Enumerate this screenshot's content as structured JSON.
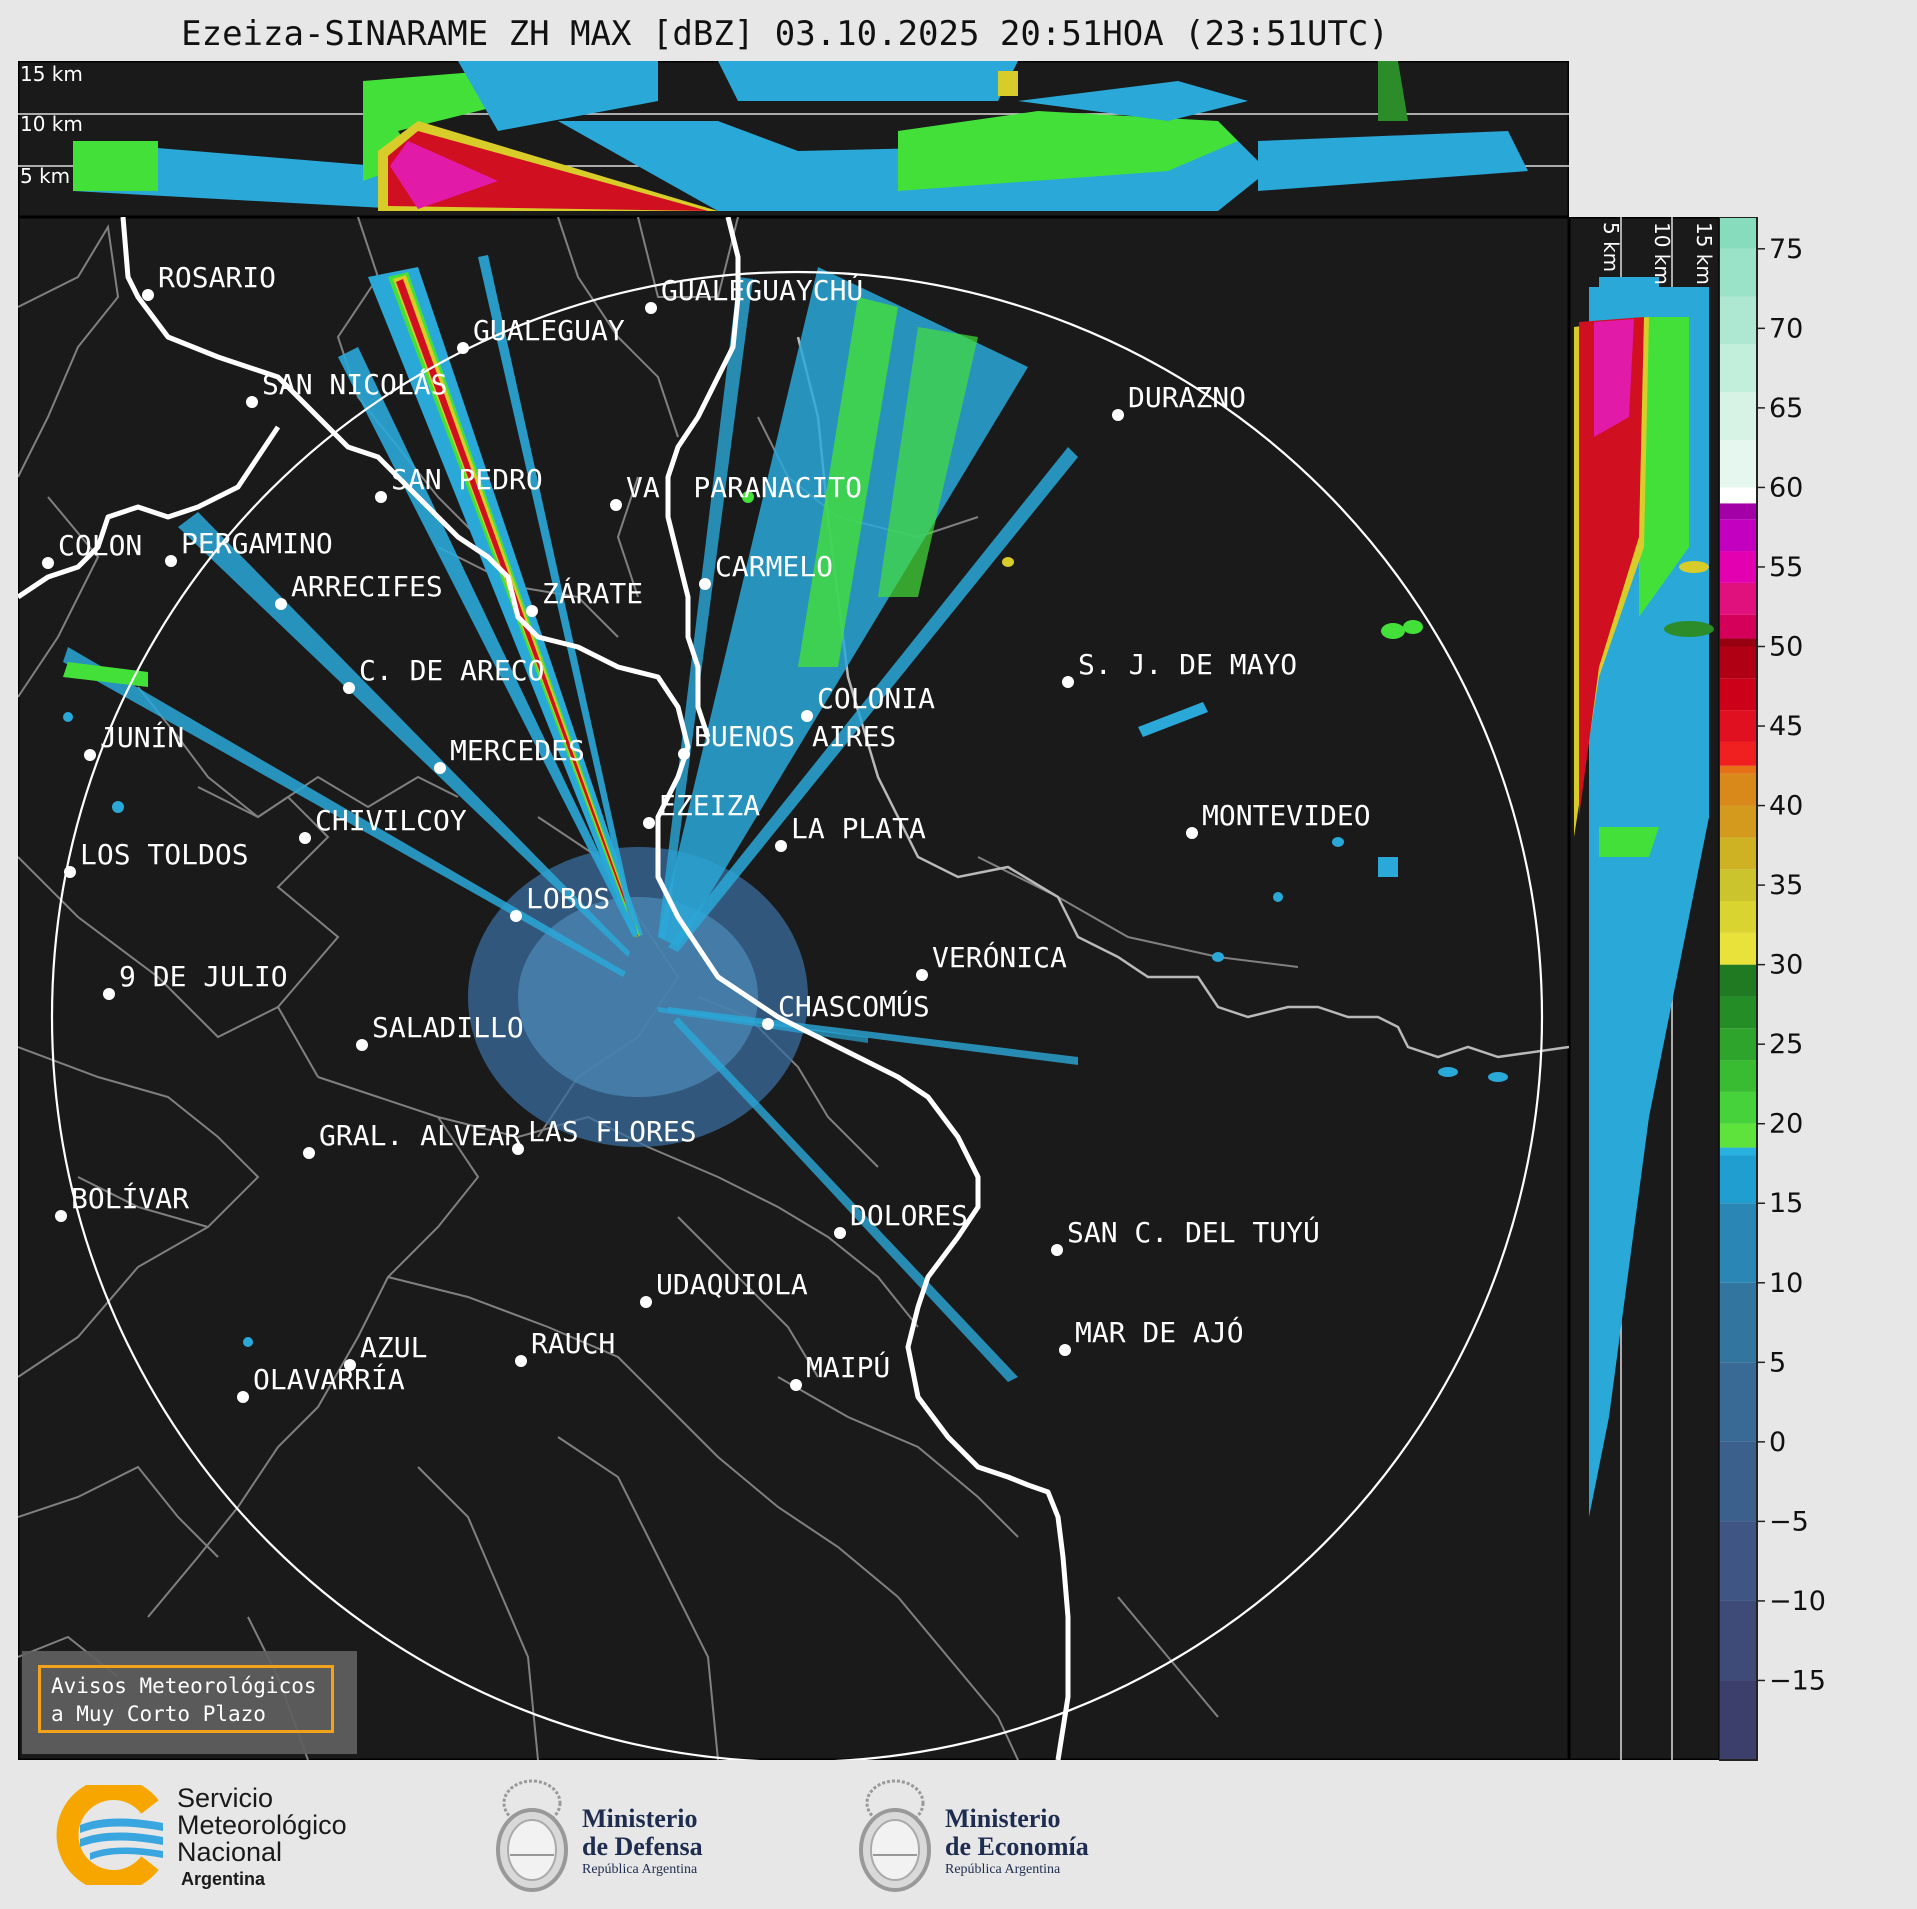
{
  "title": "Ezeiza-SINARAME ZH MAX [dBZ] 03.10.2025 20:51HOA (23:51UTC)",
  "top_strip": {
    "height_labels": [
      "15 km",
      "10 km",
      "5 km"
    ]
  },
  "side_strip": {
    "height_labels": [
      "5 km",
      "10 km",
      "15 km"
    ]
  },
  "colorbar": {
    "ticks": [
      "75",
      "70",
      "65",
      "60",
      "55",
      "50",
      "45",
      "40",
      "35",
      "30",
      "25",
      "20",
      "15",
      "10",
      "5",
      "0",
      "−5",
      "−10",
      "−15"
    ],
    "range_dbz": [
      -20,
      77
    ]
  },
  "cities": [
    {
      "name": "ROSARIO"
    },
    {
      "name": "GUALEGUAYCHÚ"
    },
    {
      "name": "GUALEGUAY"
    },
    {
      "name": "SAN NICOLÁS"
    },
    {
      "name": "DURAZNO"
    },
    {
      "name": "SAN PEDRO"
    },
    {
      "name": "VA. PARANACITO"
    },
    {
      "name": "COLON"
    },
    {
      "name": "PERGAMINO"
    },
    {
      "name": "CARMELO"
    },
    {
      "name": "ARRECIFES"
    },
    {
      "name": "ZÁRATE"
    },
    {
      "name": "S. J. DE MAYO"
    },
    {
      "name": "C. DE ARECO"
    },
    {
      "name": "COLONIA"
    },
    {
      "name": "JUNÍN"
    },
    {
      "name": "BUENOS AIRES"
    },
    {
      "name": "MERCEDES"
    },
    {
      "name": "MONTEVIDEO"
    },
    {
      "name": "EZEIZA"
    },
    {
      "name": "CHIVILCOY"
    },
    {
      "name": "LA PLATA"
    },
    {
      "name": "LOS TOLDOS"
    },
    {
      "name": "LOBOS"
    },
    {
      "name": "VERÓNICA"
    },
    {
      "name": "9 DE JULIO"
    },
    {
      "name": "CHASCOMÚS"
    },
    {
      "name": "SALADILLO"
    },
    {
      "name": "GRAL. ALVEAR"
    },
    {
      "name": "LAS FLORES"
    },
    {
      "name": "BOLÍVAR"
    },
    {
      "name": "DOLORES"
    },
    {
      "name": "SAN C. DEL TUYÚ"
    },
    {
      "name": "UDAQUIOLA"
    },
    {
      "name": "MAR DE AJÓ"
    },
    {
      "name": "AZUL"
    },
    {
      "name": "RAUCH"
    },
    {
      "name": "MAIPÚ"
    },
    {
      "name": "OLAVARRÍA"
    }
  ],
  "warning_box": {
    "line1": "Avisos Meteorológicos",
    "line2": "a Muy Corto Plazo"
  },
  "logos": {
    "smn": {
      "line1": "Servicio",
      "line2": "Meteorológico",
      "line3": "Nacional",
      "line4": "Argentina"
    },
    "defensa": {
      "line1": "Ministerio",
      "line2": "de Defensa",
      "line3": "República Argentina"
    },
    "economia": {
      "line1": "Ministerio",
      "line2": "de Economía",
      "line3": "República Argentina"
    }
  },
  "colors": {
    "background": "#1a1a1a",
    "coast": "#ffffff",
    "borders": "#808080",
    "range_ring": "#ffffff",
    "warning_border": "#f3a21c"
  }
}
